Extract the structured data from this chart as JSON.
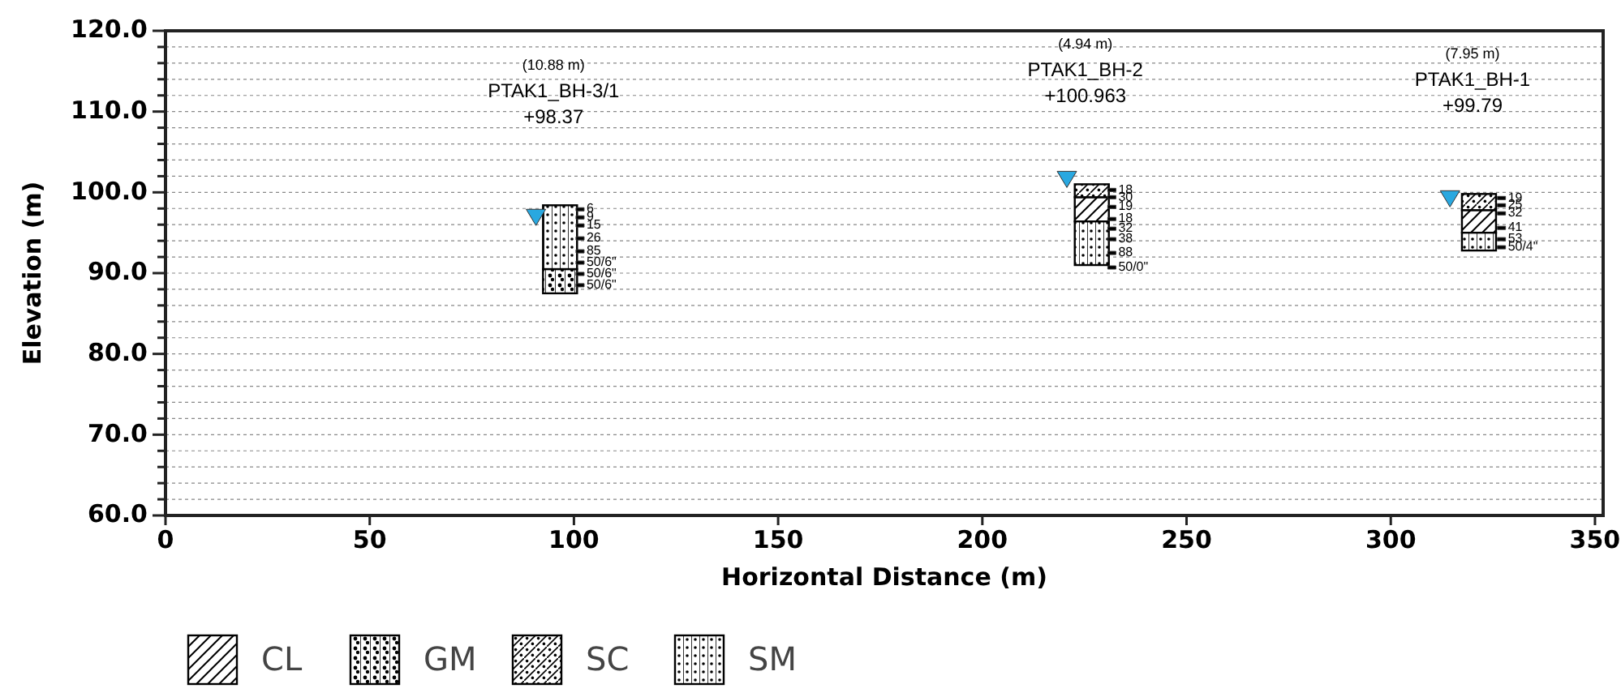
{
  "chart_data": {
    "type": "bar",
    "xlabel": "Horizontal Distance (m)",
    "ylabel": "Elevation (m)",
    "xlim": [
      0,
      352
    ],
    "xticks": [
      0,
      50,
      100,
      150,
      200,
      250,
      300,
      350
    ],
    "ylim": [
      60,
      120
    ],
    "yticks": [
      {
        "value": 60,
        "label": "60.0"
      },
      {
        "value": 62,
        "label": null
      },
      {
        "value": 64,
        "label": null
      },
      {
        "value": 66,
        "label": null
      },
      {
        "value": 68,
        "label": null
      },
      {
        "value": 70,
        "label": "70.0"
      },
      {
        "value": 72,
        "label": null
      },
      {
        "value": 74,
        "label": null
      },
      {
        "value": 76,
        "label": null
      },
      {
        "value": 78,
        "label": null
      },
      {
        "value": 80,
        "label": "80.0"
      },
      {
        "value": 82,
        "label": null
      },
      {
        "value": 84,
        "label": null
      },
      {
        "value": 86,
        "label": null
      },
      {
        "value": 88,
        "label": null
      },
      {
        "value": 90,
        "label": "90.0"
      },
      {
        "value": 92,
        "label": null
      },
      {
        "value": 94,
        "label": null
      },
      {
        "value": 96,
        "label": null
      },
      {
        "value": 98,
        "label": null
      },
      {
        "value": 100,
        "label": "100.0"
      },
      {
        "value": 102,
        "label": null
      },
      {
        "value": 104,
        "label": null
      },
      {
        "value": 106,
        "label": null
      },
      {
        "value": 108,
        "label": null
      },
      {
        "value": 110,
        "label": "110.0"
      },
      {
        "value": 112,
        "label": null
      },
      {
        "value": 114,
        "label": null
      },
      {
        "value": 116,
        "label": null
      },
      {
        "value": 118,
        "label": null
      },
      {
        "value": 120,
        "label": "120.0"
      }
    ],
    "grid": "y",
    "legend": "bottom left",
    "x": [
      96.6,
      226.8,
      321.6
    ],
    "series": [
      {
        "name": "CL",
        "color": "#000000",
        "values": [
          null,
          3.0,
          2.8
        ],
        "base": [
          null,
          96.4,
          95.0
        ]
      },
      {
        "name": "GM",
        "color": "#000000",
        "values": [
          3.0,
          null,
          null
        ],
        "base": [
          87.5,
          null,
          null
        ]
      },
      {
        "name": "SC",
        "color": "#000000",
        "values": [
          null,
          1.6,
          2.0
        ],
        "base": [
          null,
          99.4,
          97.8
        ]
      },
      {
        "name": "SM",
        "color": "#000000",
        "values": [
          7.9,
          5.4,
          2.2
        ],
        "base": [
          90.5,
          91.0,
          92.8
        ]
      },
      {
        "type": "scatter",
        "marker": "triangle",
        "color": "#29a8e0",
        "x": [
          90.7,
          220.7,
          314.5
        ],
        "values": [
          97.1,
          101.8,
          99.4
        ]
      },
      {
        "type": "scatter",
        "marker": "square",
        "color": "#000000",
        "x": [
          101.5,
          101.5,
          101.5,
          101.5,
          101.5,
          101.5,
          101.5,
          101.5,
          231.7,
          231.7,
          231.7,
          231.7,
          231.7,
          231.7,
          231.7,
          231.7,
          327.1,
          327.1,
          327.1,
          327.1,
          327.1,
          327.1
        ],
        "values": [
          97.9,
          96.9,
          95.9,
          94.3,
          92.7,
          91.3,
          89.9,
          88.5,
          100.3,
          99.4,
          98.2,
          96.7,
          95.5,
          94.2,
          92.5,
          90.7,
          99.3,
          98.4,
          97.4,
          95.6,
          94.2,
          93.2
        ]
      }
    ],
    "annotations": [
      "(10.88 m)",
      "PTAK1_BH-3/1",
      "+98.37",
      "(4.94 m)",
      "PTAK1_BH-2",
      "+100.963",
      "(7.95 m)",
      "PTAK1_BH-1",
      "+99.79",
      {
        "text": "6",
        "x": 101.5,
        "y": 97.9
      },
      {
        "text": "9",
        "x": 101.5,
        "y": 96.9
      },
      {
        "text": "15",
        "x": 101.5,
        "y": 95.9
      },
      {
        "text": "26",
        "x": 101.5,
        "y": 94.3
      },
      {
        "text": "85",
        "x": 101.5,
        "y": 92.7
      },
      {
        "text": "50/6\"",
        "x": 101.5,
        "y": 91.3
      },
      {
        "text": "50/6\"",
        "x": 101.5,
        "y": 89.9
      },
      {
        "text": "50/6\"",
        "x": 101.5,
        "y": 88.5
      },
      {
        "text": "18",
        "x": 231.7,
        "y": 100.3
      },
      {
        "text": "30",
        "x": 231.7,
        "y": 99.4
      },
      {
        "text": "19",
        "x": 231.7,
        "y": 98.2
      },
      {
        "text": "18",
        "x": 231.7,
        "y": 96.7
      },
      {
        "text": "32",
        "x": 231.7,
        "y": 95.5
      },
      {
        "text": "38",
        "x": 231.7,
        "y": 94.2
      },
      {
        "text": "88",
        "x": 231.7,
        "y": 92.5
      },
      {
        "text": "50/0\"",
        "x": 231.7,
        "y": 90.7
      },
      {
        "text": "19",
        "x": 327.1,
        "y": 99.3
      },
      {
        "text": "25",
        "x": 327.1,
        "y": 98.4
      },
      {
        "text": "32",
        "x": 327.1,
        "y": 97.4
      },
      {
        "text": "41",
        "x": 327.1,
        "y": 95.6
      },
      {
        "text": "53",
        "x": 327.1,
        "y": 94.2
      },
      {
        "text": "50/4\"",
        "x": 327.1,
        "y": 93.2
      }
    ]
  }
}
